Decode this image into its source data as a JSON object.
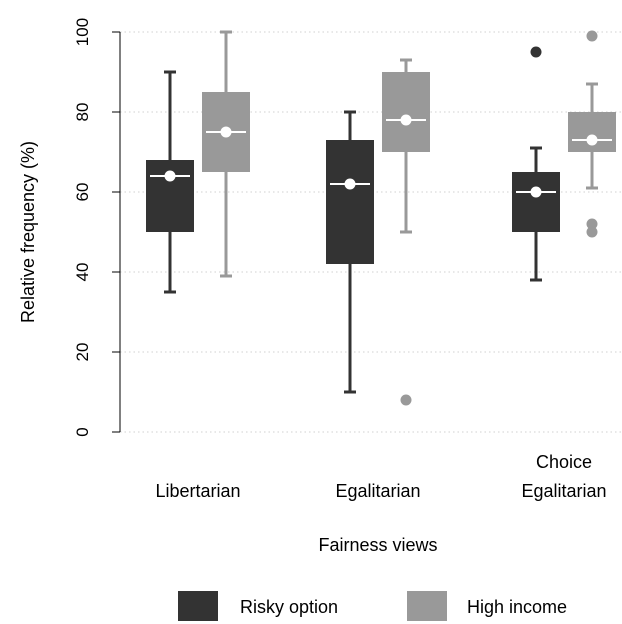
{
  "chart_data": {
    "type": "box",
    "xlabel": "Fairness views",
    "ylabel": "Relative frequency (%)",
    "ylim": [
      0,
      100
    ],
    "yticks": [
      0,
      20,
      40,
      60,
      80,
      100
    ],
    "grid": true,
    "legend_position": "bottom",
    "categories": [
      {
        "lines": [
          "Libertarian"
        ]
      },
      {
        "lines": [
          "Egalitarian"
        ]
      },
      {
        "lines": [
          "Choice",
          "Egalitarian"
        ]
      }
    ],
    "series": [
      {
        "name": "Risky option",
        "color": "#333333",
        "boxes": [
          {
            "whisker_low": 35,
            "q1": 50,
            "median": 64,
            "q3": 68,
            "whisker_high": 90,
            "mean": 64,
            "outliers": []
          },
          {
            "whisker_low": 10,
            "q1": 42,
            "median": 62,
            "q3": 73,
            "whisker_high": 80,
            "mean": 62,
            "outliers": []
          },
          {
            "whisker_low": 38,
            "q1": 50,
            "median": 60,
            "q3": 65,
            "whisker_high": 71,
            "mean": 60,
            "outliers": [
              95
            ]
          }
        ]
      },
      {
        "name": "High income",
        "color": "#999999",
        "boxes": [
          {
            "whisker_low": 39,
            "q1": 65,
            "median": 75,
            "q3": 85,
            "whisker_high": 100,
            "mean": 75,
            "outliers": []
          },
          {
            "whisker_low": 50,
            "q1": 70,
            "median": 78,
            "q3": 90,
            "whisker_high": 93,
            "mean": 78,
            "outliers": [
              8
            ]
          },
          {
            "whisker_low": 61,
            "q1": 70,
            "median": 73,
            "q3": 80,
            "whisker_high": 87,
            "mean": 73,
            "outliers": [
              99,
              52,
              50
            ]
          }
        ]
      }
    ]
  }
}
